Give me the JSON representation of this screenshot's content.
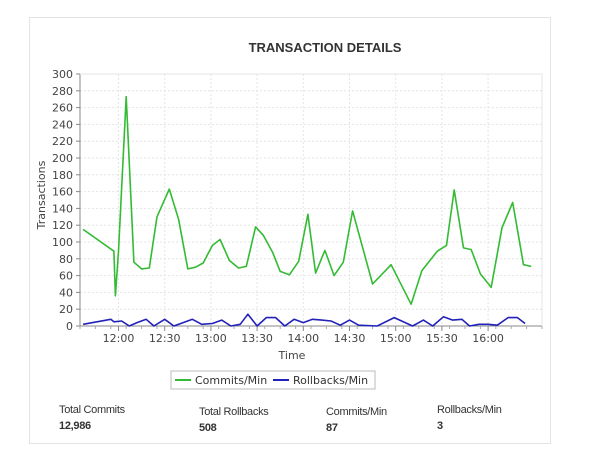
{
  "chart_data": {
    "type": "line",
    "title": "TRANSACTION DETAILS",
    "xlabel": "Time",
    "ylabel": "Transactions",
    "ylim": [
      0,
      300
    ],
    "yticks": [
      0,
      20,
      40,
      60,
      80,
      100,
      120,
      140,
      160,
      180,
      200,
      220,
      240,
      260,
      280,
      300
    ],
    "xlim": [
      "11:35",
      "16:35"
    ],
    "xticks": [
      "12:00",
      "12:30",
      "13:00",
      "13:30",
      "14:00",
      "14:30",
      "15:00",
      "15:30",
      "16:00"
    ],
    "grid": true,
    "legend_position": "bottom",
    "series": [
      {
        "name": "Commits/Min",
        "color": "#33bb33",
        "points": [
          [
            "11:37",
            115
          ],
          [
            "11:57",
            89
          ],
          [
            "11:58",
            36
          ],
          [
            "12:00",
            89
          ],
          [
            "12:05",
            273
          ],
          [
            "12:10",
            76
          ],
          [
            "12:15",
            68
          ],
          [
            "12:20",
            69
          ],
          [
            "12:25",
            130
          ],
          [
            "12:33",
            163
          ],
          [
            "12:39",
            127
          ],
          [
            "12:45",
            68
          ],
          [
            "12:50",
            70
          ],
          [
            "12:55",
            75
          ],
          [
            "13:01",
            96
          ],
          [
            "13:06",
            103
          ],
          [
            "13:12",
            78
          ],
          [
            "13:18",
            69
          ],
          [
            "13:23",
            71
          ],
          [
            "13:29",
            118
          ],
          [
            "13:34",
            108
          ],
          [
            "13:40",
            88
          ],
          [
            "13:45",
            65
          ],
          [
            "13:51",
            61
          ],
          [
            "13:57",
            77
          ],
          [
            "14:03",
            133
          ],
          [
            "14:08",
            63
          ],
          [
            "14:14",
            90
          ],
          [
            "14:20",
            60
          ],
          [
            "14:26",
            76
          ],
          [
            "14:32",
            137
          ],
          [
            "14:45",
            50
          ],
          [
            "14:57",
            73
          ],
          [
            "15:10",
            26
          ],
          [
            "15:17",
            66
          ],
          [
            "15:27",
            89
          ],
          [
            "15:33",
            96
          ],
          [
            "15:38",
            162
          ],
          [
            "15:44",
            93
          ],
          [
            "15:49",
            91
          ],
          [
            "15:55",
            62
          ],
          [
            "16:02",
            46
          ],
          [
            "16:09",
            117
          ],
          [
            "16:16",
            147
          ],
          [
            "16:23",
            73
          ],
          [
            "16:28",
            71
          ]
        ]
      },
      {
        "name": "Rollbacks/Min",
        "color": "#2222bb",
        "points": [
          [
            "11:37",
            2
          ],
          [
            "11:55",
            8
          ],
          [
            "11:57",
            5
          ],
          [
            "12:02",
            6
          ],
          [
            "12:07",
            0
          ],
          [
            "12:12",
            4
          ],
          [
            "12:18",
            8
          ],
          [
            "12:23",
            0
          ],
          [
            "12:30",
            8
          ],
          [
            "12:36",
            0
          ],
          [
            "12:42",
            4
          ],
          [
            "12:48",
            8
          ],
          [
            "12:54",
            2
          ],
          [
            "13:01",
            3
          ],
          [
            "13:07",
            7
          ],
          [
            "13:13",
            0
          ],
          [
            "13:19",
            2
          ],
          [
            "13:24",
            14
          ],
          [
            "13:30",
            0
          ],
          [
            "13:36",
            10
          ],
          [
            "13:42",
            10
          ],
          [
            "13:48",
            0
          ],
          [
            "13:54",
            8
          ],
          [
            "14:00",
            4
          ],
          [
            "14:06",
            8
          ],
          [
            "14:12",
            7
          ],
          [
            "14:18",
            6
          ],
          [
            "14:24",
            1
          ],
          [
            "14:30",
            7
          ],
          [
            "14:36",
            1
          ],
          [
            "14:48",
            0
          ],
          [
            "14:59",
            10
          ],
          [
            "15:11",
            0
          ],
          [
            "15:18",
            7
          ],
          [
            "15:24",
            0
          ],
          [
            "15:31",
            11
          ],
          [
            "15:37",
            7
          ],
          [
            "15:43",
            8
          ],
          [
            "15:48",
            0
          ],
          [
            "15:54",
            2
          ],
          [
            "16:00",
            2
          ],
          [
            "16:06",
            1
          ],
          [
            "16:13",
            10
          ],
          [
            "16:19",
            10
          ],
          [
            "16:24",
            3
          ]
        ]
      }
    ]
  },
  "stats": [
    {
      "label": "Total Commits",
      "value": "12,986"
    },
    {
      "label": "Total Rollbacks",
      "value": "508"
    },
    {
      "label": "Commits/Min",
      "value": "87"
    },
    {
      "label": "Rollbacks/Min",
      "value": "3"
    }
  ]
}
